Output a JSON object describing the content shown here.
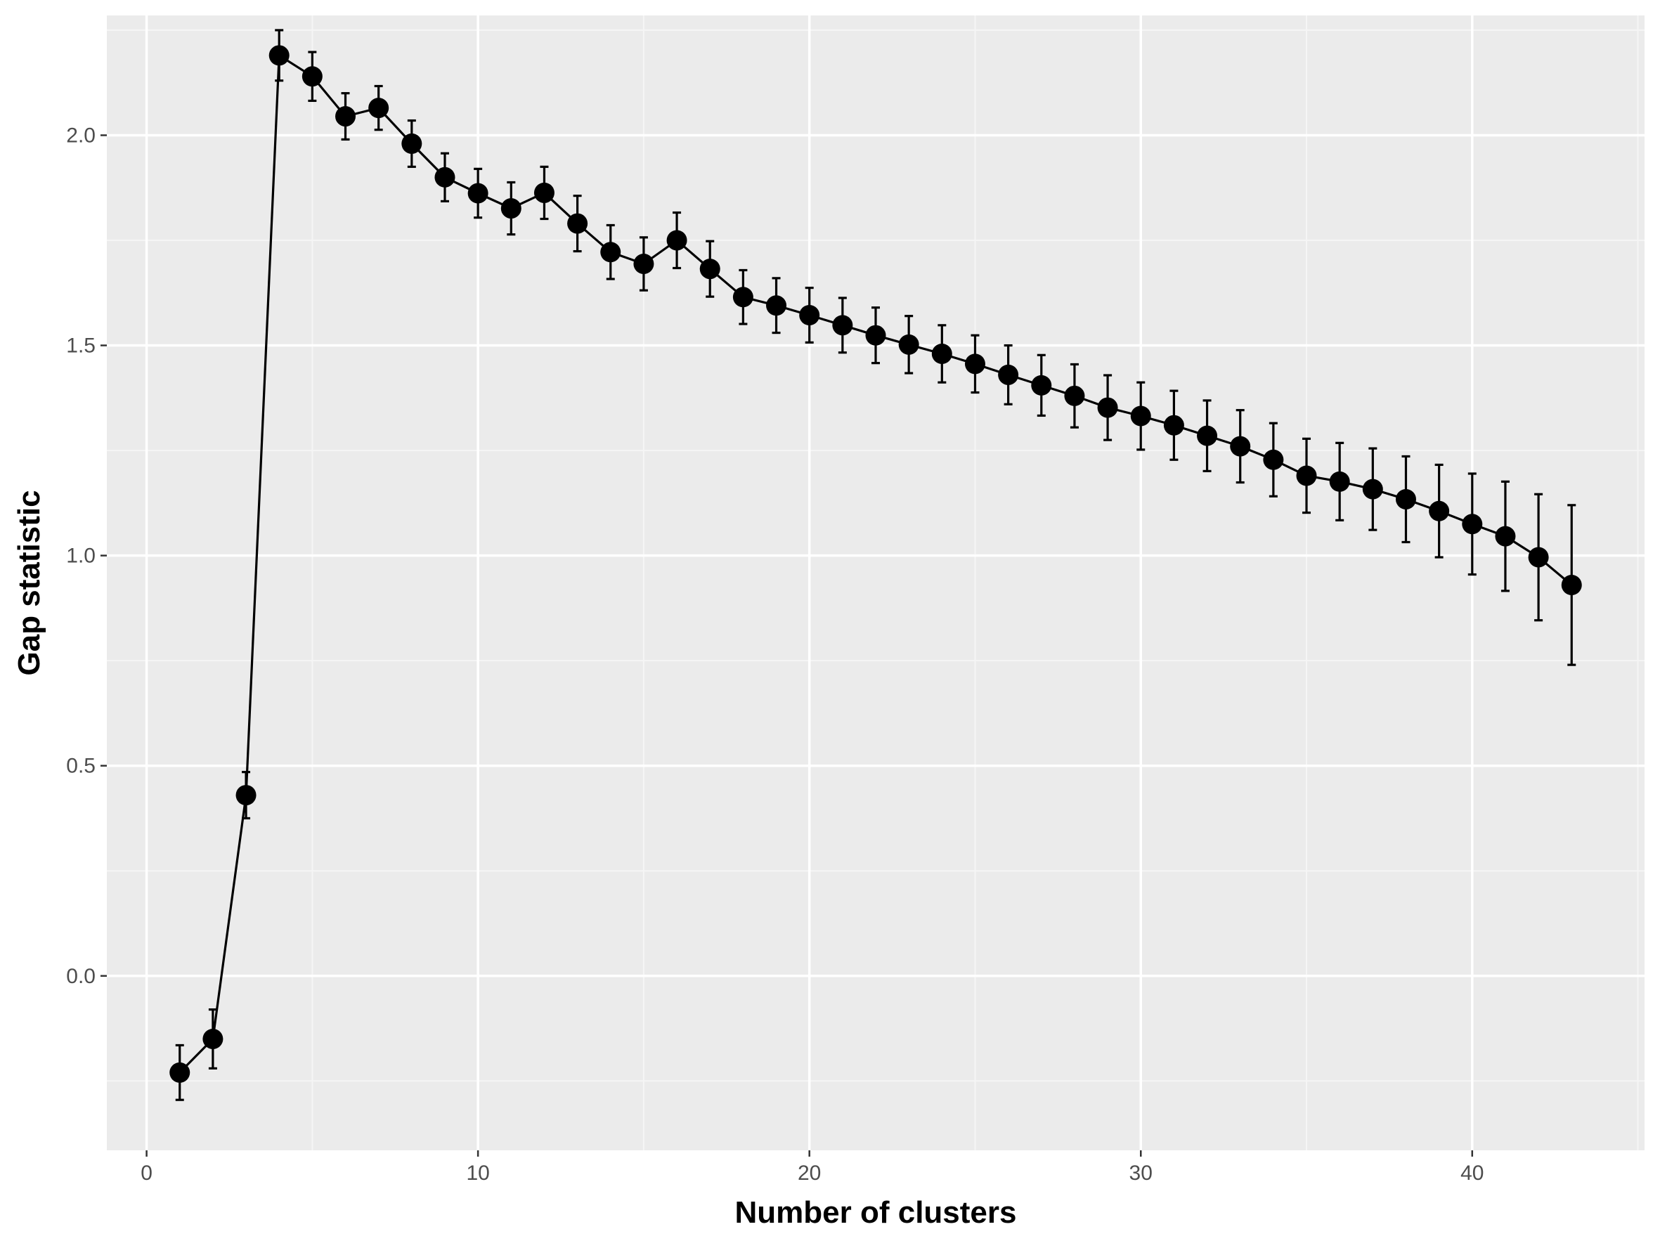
{
  "colors": {
    "panel_background": "#ebebeb",
    "grid_major": "#ffffff",
    "grid_minor": "#f5f5f5",
    "series": "#000000",
    "tick_text": "#4d4d4d",
    "tick_mark": "#333333"
  },
  "chart_data": {
    "type": "line",
    "title": "",
    "xlabel": "Number of clusters",
    "ylabel": "Gap statistic",
    "xlim": [
      -1.2,
      45.2
    ],
    "ylim": [
      -0.415,
      2.285
    ],
    "x_ticks": [
      0,
      10,
      20,
      30,
      40
    ],
    "y_ticks": [
      0.0,
      0.5,
      1.0,
      1.5,
      2.0
    ],
    "x_tick_labels": [
      "0",
      "10",
      "20",
      "30",
      "40"
    ],
    "y_tick_labels": [
      "0.0",
      "0.5",
      "1.0",
      "1.5",
      "2.0"
    ],
    "grid": true,
    "legend": "none",
    "points_style": "point-line-errorbar",
    "series": [
      {
        "x": [
          1,
          2,
          3,
          4,
          5,
          6,
          7,
          8,
          9,
          10,
          11,
          12,
          13,
          14,
          15,
          16,
          17,
          18,
          19,
          20,
          21,
          22,
          23,
          24,
          25,
          26,
          27,
          28,
          29,
          30,
          31,
          32,
          33,
          34,
          35,
          36,
          37,
          38,
          39,
          40,
          41,
          42,
          43
        ],
        "y": [
          -0.23,
          -0.15,
          0.43,
          2.19,
          2.14,
          2.045,
          2.065,
          1.98,
          1.9,
          1.862,
          1.826,
          1.863,
          1.79,
          1.722,
          1.694,
          1.75,
          1.682,
          1.615,
          1.595,
          1.572,
          1.548,
          1.524,
          1.502,
          1.48,
          1.456,
          1.43,
          1.405,
          1.38,
          1.352,
          1.332,
          1.31,
          1.285,
          1.26,
          1.228,
          1.19,
          1.176,
          1.158,
          1.134,
          1.106,
          1.075,
          1.046,
          0.996,
          0.93
        ],
        "se": [
          0.065,
          0.07,
          0.055,
          0.06,
          0.058,
          0.055,
          0.052,
          0.055,
          0.057,
          0.058,
          0.062,
          0.062,
          0.066,
          0.064,
          0.063,
          0.066,
          0.066,
          0.064,
          0.065,
          0.065,
          0.065,
          0.066,
          0.068,
          0.068,
          0.068,
          0.07,
          0.072,
          0.075,
          0.077,
          0.08,
          0.082,
          0.084,
          0.086,
          0.087,
          0.088,
          0.092,
          0.097,
          0.102,
          0.11,
          0.12,
          0.13,
          0.15,
          0.19
        ]
      }
    ]
  }
}
